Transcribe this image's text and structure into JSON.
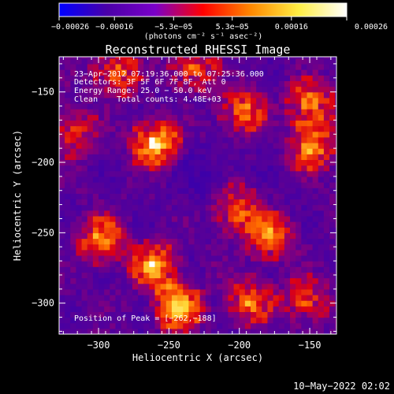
{
  "chart_data": {
    "type": "heatmap",
    "title": "Reconstructed RHESSI Image",
    "xlabel": "Heliocentric X (arcsec)",
    "ylabel": "Heliocentric Y (arcsec)",
    "xlim": [
      -328,
      -131
    ],
    "ylim": [
      -322,
      -125
    ],
    "x_ticks": [
      -300,
      -250,
      -200,
      -150
    ],
    "x_tick_labels": [
      "−300",
      "−250",
      "−200",
      "−150"
    ],
    "y_ticks": [
      -150,
      -200,
      -250,
      -300
    ],
    "y_tick_labels": [
      "−150",
      "−200",
      "−250",
      "−300"
    ],
    "colorbar": {
      "range": [
        -0.00026,
        0.00026
      ],
      "tick_values": [
        -0.00026,
        -0.00016,
        -5.3e-05,
        5.3e-05,
        0.00016,
        0.00026
      ],
      "tick_labels": [
        "−0.00026",
        "−0.00016",
        "−5.3e−05",
        "5.3e−05",
        "0.00016",
        "0.00026"
      ],
      "unit_label": "(photons cm⁻² s⁻¹ asec⁻²)",
      "colors": [
        "#0000ff",
        "#4a00a8",
        "#7a00c8",
        "#ff0000",
        "#ff8800",
        "#ffee44",
        "#ffffff"
      ]
    },
    "info_lines": [
      "23−Apr−2012 07:19:36.000 to 07:25:36.000",
      "Detectors: 3F 5F 6F 7F 8F, Att 0",
      "Energy Range: 25.0 − 50.0 keV",
      "Clean    Total counts: 4.48E+03"
    ],
    "peak_text": "Position of Peak = [−262,−188]",
    "sources": [
      {
        "x": -262,
        "y": -188,
        "intensity": 1.0
      },
      {
        "x": -262,
        "y": -275,
        "intensity": 0.85
      },
      {
        "x": -300,
        "y": -258,
        "intensity": 0.8
      },
      {
        "x": -245,
        "y": -305,
        "intensity": 0.95
      },
      {
        "x": -205,
        "y": -235,
        "intensity": 0.8
      },
      {
        "x": -200,
        "y": -165,
        "intensity": 0.7
      },
      {
        "x": -180,
        "y": -255,
        "intensity": 0.75
      },
      {
        "x": -150,
        "y": -190,
        "intensity": 0.8
      },
      {
        "x": -152,
        "y": -160,
        "intensity": 0.75
      },
      {
        "x": -290,
        "y": -138,
        "intensity": 0.7
      },
      {
        "x": -235,
        "y": -135,
        "intensity": 0.65
      },
      {
        "x": -320,
        "y": -180,
        "intensity": 0.6
      },
      {
        "x": -195,
        "y": -300,
        "intensity": 0.7
      },
      {
        "x": -155,
        "y": -300,
        "intensity": 0.6
      }
    ],
    "timestamp": "10−May−2022 02:02"
  }
}
